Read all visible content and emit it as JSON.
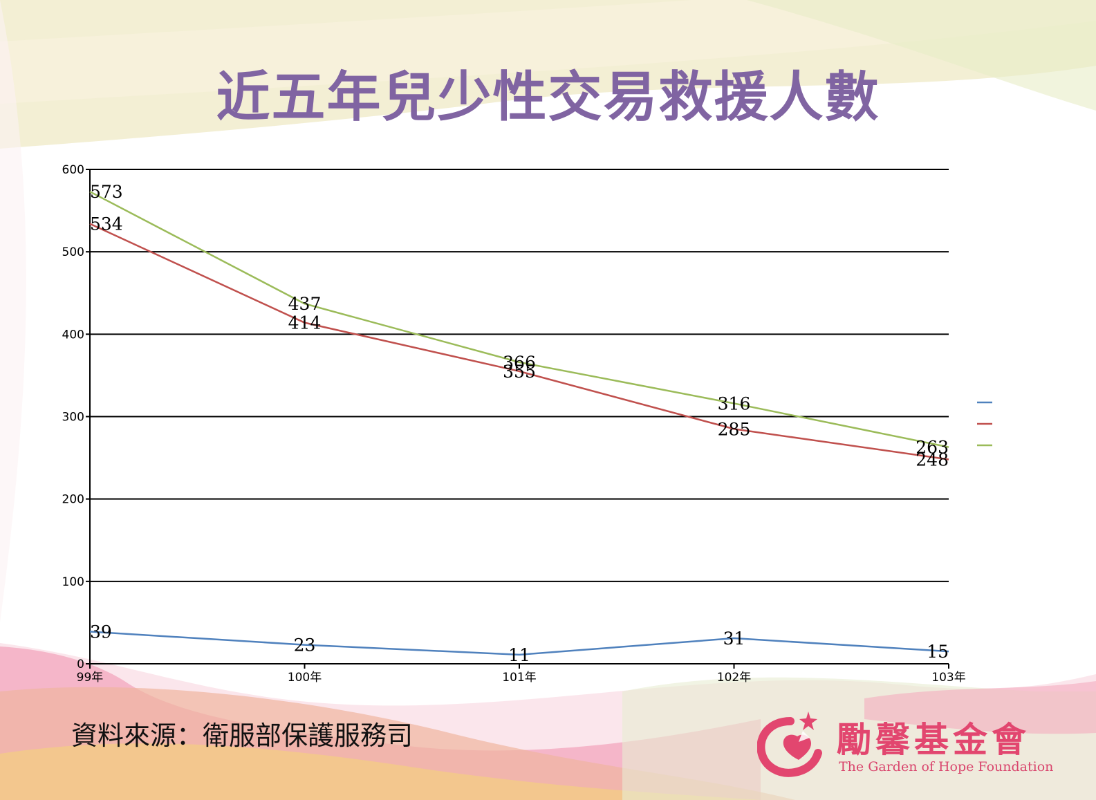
{
  "slide": {
    "title": "近五年兒少性交易救援人數",
    "source_note": "資料來源：衛服部保護服務司"
  },
  "logo": {
    "name_cn": "勵馨基金會",
    "name_en": "The Garden of Hope Foundation",
    "icon": "heart-star-logo-icon"
  },
  "colors": {
    "title": "#8064a2",
    "series": [
      "#4f81bd",
      "#c0504d",
      "#9bbb59"
    ],
    "logo": "#e2466f"
  },
  "chart_data": {
    "type": "line",
    "title": "",
    "xlabel": "",
    "ylabel": "",
    "categories": [
      "99年",
      "100年",
      "101年",
      "102年",
      "103年"
    ],
    "ylim": [
      0,
      600
    ],
    "yticks": [
      0,
      100,
      200,
      300,
      400,
      500,
      600
    ],
    "grid": true,
    "legend": "right",
    "series": [
      {
        "name": "",
        "color": "#4f81bd",
        "values": [
          39,
          23,
          11,
          31,
          15
        ]
      },
      {
        "name": "",
        "color": "#c0504d",
        "values": [
          534,
          414,
          355,
          285,
          248
        ]
      },
      {
        "name": "",
        "color": "#9bbb59",
        "values": [
          573,
          437,
          366,
          316,
          263
        ]
      }
    ]
  }
}
